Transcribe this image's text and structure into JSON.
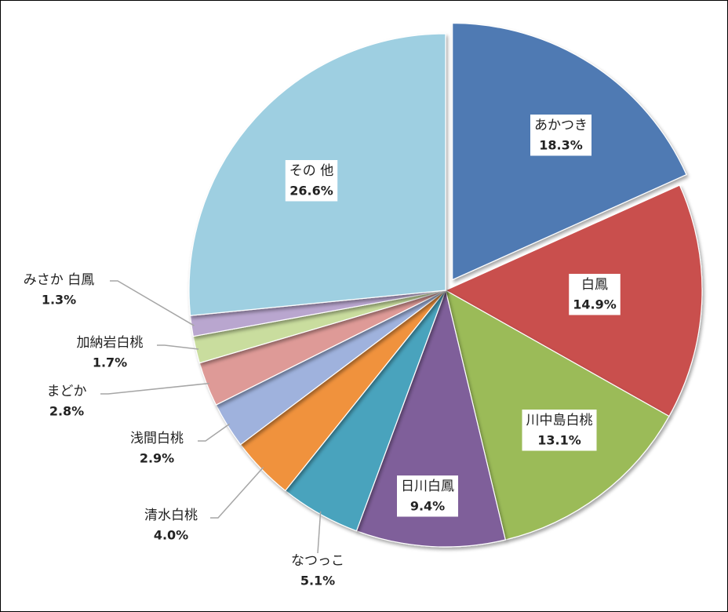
{
  "chart_data": {
    "type": "pie",
    "categories": [
      "あかつき",
      "白鳳",
      "川中島白桃",
      "日川白鳳",
      "なつっこ",
      "清水白桃",
      "浅間白桃",
      "まどか",
      "加納岩白桃",
      "みさか 白鳳",
      "その 他"
    ],
    "values": [
      18.3,
      14.9,
      13.1,
      9.4,
      5.1,
      4.0,
      2.9,
      2.8,
      1.7,
      1.3,
      26.6
    ],
    "value_labels": [
      "18.3%",
      "14.9%",
      "13.1%",
      "9.4%",
      "5.1%",
      "4.0%",
      "2.9%",
      "2.8%",
      "1.7%",
      "1.3%",
      "26.6%"
    ],
    "colors": [
      "#4f7ab3",
      "#c9504e",
      "#9bbb59",
      "#7f5f9a",
      "#4aa3bd",
      "#f0923c",
      "#9fb2dd",
      "#de9a97",
      "#c9dd9e",
      "#b9a6cf",
      "#9ecfe1"
    ],
    "exploded": [
      0
    ]
  }
}
